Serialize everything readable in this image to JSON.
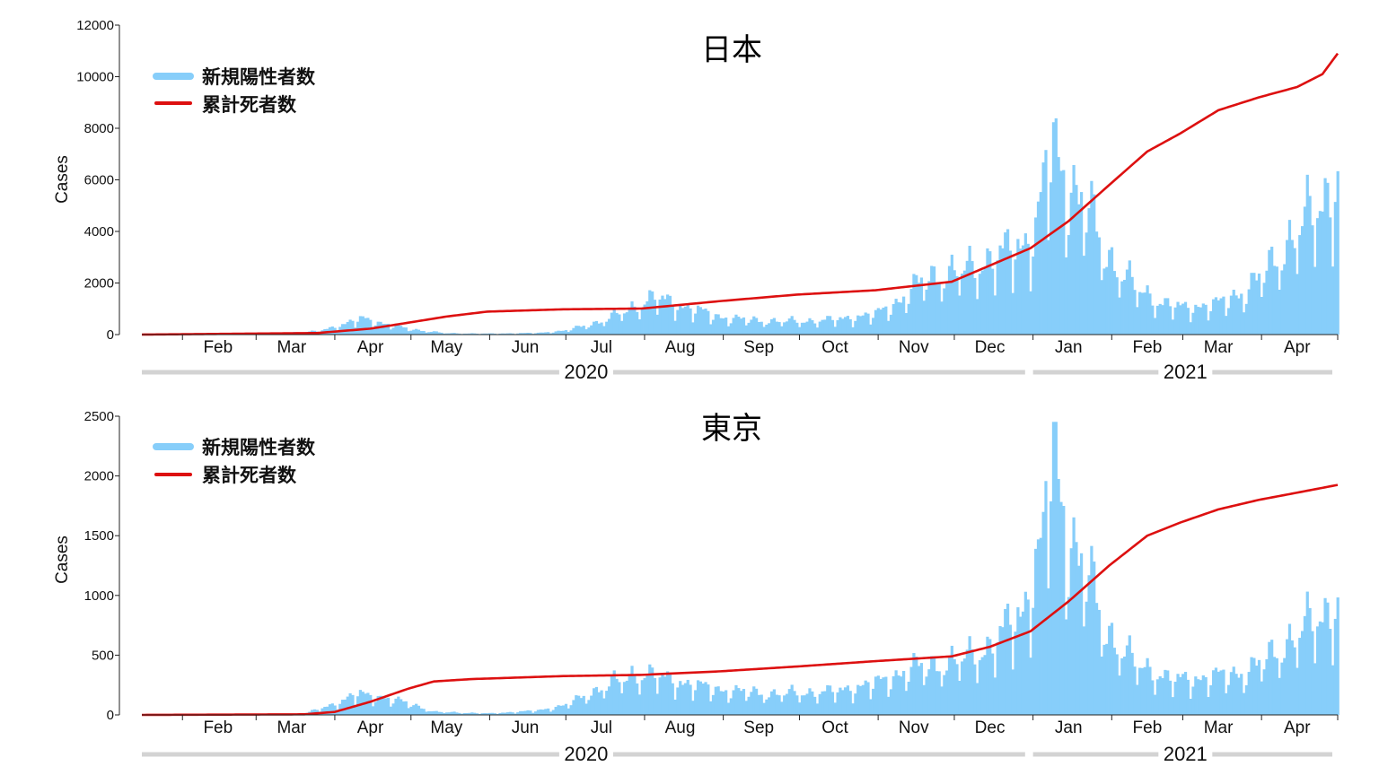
{
  "chart_data": [
    {
      "type": "bar+line",
      "title": "日本",
      "ylabel": "Cases",
      "ylim": [
        0,
        12000
      ],
      "yticks": [
        "0",
        "2000",
        "4000",
        "6000",
        "8000",
        "10000",
        "12000"
      ],
      "x_range": [
        "2020-01-16",
        "2021-05-01"
      ],
      "month_labels": [
        {
          "label": "Feb",
          "date": "2020-02-15"
        },
        {
          "label": "Mar",
          "date": "2020-03-15"
        },
        {
          "label": "Apr",
          "date": "2020-04-15"
        },
        {
          "label": "May",
          "date": "2020-05-15"
        },
        {
          "label": "Jun",
          "date": "2020-06-15"
        },
        {
          "label": "Jul",
          "date": "2020-07-15"
        },
        {
          "label": "Aug",
          "date": "2020-08-15"
        },
        {
          "label": "Sep",
          "date": "2020-09-15"
        },
        {
          "label": "Oct",
          "date": "2020-10-15"
        },
        {
          "label": "Nov",
          "date": "2020-11-15"
        },
        {
          "label": "Dec",
          "date": "2020-12-15"
        },
        {
          "label": "Jan",
          "date": "2021-01-15"
        },
        {
          "label": "Feb",
          "date": "2021-02-15"
        },
        {
          "label": "Mar",
          "date": "2021-03-15"
        },
        {
          "label": "Apr",
          "date": "2021-04-15"
        }
      ],
      "years": [
        {
          "label": "2020",
          "start": "2020-01-16",
          "end": "2020-12-31"
        },
        {
          "label": "2021",
          "start": "2021-01-01",
          "end": "2021-05-01"
        }
      ],
      "legend": [
        "新規陽性者数",
        "累計死者数"
      ],
      "series": [
        {
          "name": "新規陽性者数",
          "kind": "bar",
          "color": "#87cefa",
          "anchors": [
            [
              "2020-01-16",
              0
            ],
            [
              "2020-03-01",
              15
            ],
            [
              "2020-03-25",
              120
            ],
            [
              "2020-04-05",
              400
            ],
            [
              "2020-04-12",
              600
            ],
            [
              "2020-04-20",
              420
            ],
            [
              "2020-05-01",
              200
            ],
            [
              "2020-05-15",
              50
            ],
            [
              "2020-06-01",
              35
            ],
            [
              "2020-06-20",
              60
            ],
            [
              "2020-07-01",
              150
            ],
            [
              "2020-07-15",
              500
            ],
            [
              "2020-07-28",
              1050
            ],
            [
              "2020-08-05",
              1400
            ],
            [
              "2020-08-15",
              1100
            ],
            [
              "2020-08-31",
              650
            ],
            [
              "2020-09-15",
              520
            ],
            [
              "2020-10-01",
              500
            ],
            [
              "2020-10-15",
              560
            ],
            [
              "2020-10-31",
              760
            ],
            [
              "2020-11-10",
              1300
            ],
            [
              "2020-11-20",
              2150
            ],
            [
              "2020-12-01",
              2300
            ],
            [
              "2020-12-15",
              2800
            ],
            [
              "2020-12-28",
              3400
            ],
            [
              "2021-01-02",
              3900
            ],
            [
              "2021-01-08",
              7100
            ],
            [
              "2021-01-14",
              5800
            ],
            [
              "2021-01-22",
              4800
            ],
            [
              "2021-01-30",
              3000
            ],
            [
              "2021-02-10",
              1800
            ],
            [
              "2021-02-20",
              1200
            ],
            [
              "2021-03-01",
              1000
            ],
            [
              "2021-03-15",
              1150
            ],
            [
              "2021-03-25",
              1600
            ],
            [
              "2021-04-05",
              2600
            ],
            [
              "2021-04-15",
              3900
            ],
            [
              "2021-04-25",
              5000
            ],
            [
              "2021-05-01",
              5800
            ]
          ]
        },
        {
          "name": "累計死者数",
          "kind": "line",
          "color": "#dd1010",
          "anchors": [
            [
              "2020-01-16",
              0
            ],
            [
              "2020-03-25",
              60
            ],
            [
              "2020-04-15",
              230
            ],
            [
              "2020-04-28",
              430
            ],
            [
              "2020-05-15",
              700
            ],
            [
              "2020-05-31",
              890
            ],
            [
              "2020-06-30",
              980
            ],
            [
              "2020-07-31",
              1010
            ],
            [
              "2020-08-31",
              1300
            ],
            [
              "2020-09-30",
              1550
            ],
            [
              "2020-10-31",
              1720
            ],
            [
              "2020-11-30",
              2050
            ],
            [
              "2020-12-31",
              3350
            ],
            [
              "2021-01-15",
              4400
            ],
            [
              "2021-01-31",
              5800
            ],
            [
              "2021-02-15",
              7100
            ],
            [
              "2021-02-28",
              7800
            ],
            [
              "2021-03-15",
              8700
            ],
            [
              "2021-03-31",
              9200
            ],
            [
              "2021-04-15",
              9600
            ],
            [
              "2021-04-25",
              10100
            ],
            [
              "2021-05-01",
              10900
            ]
          ]
        }
      ]
    },
    {
      "type": "bar+line",
      "title": "東京",
      "ylabel": "Cases",
      "ylim": [
        0,
        2500
      ],
      "yticks": [
        "0",
        "500",
        "1000",
        "1500",
        "2000",
        "2500"
      ],
      "x_range": [
        "2020-01-16",
        "2021-05-01"
      ],
      "month_labels": [
        {
          "label": "Feb",
          "date": "2020-02-15"
        },
        {
          "label": "Mar",
          "date": "2020-03-15"
        },
        {
          "label": "Apr",
          "date": "2020-04-15"
        },
        {
          "label": "May",
          "date": "2020-05-15"
        },
        {
          "label": "Jun",
          "date": "2020-06-15"
        },
        {
          "label": "Jul",
          "date": "2020-07-15"
        },
        {
          "label": "Aug",
          "date": "2020-08-15"
        },
        {
          "label": "Sep",
          "date": "2020-09-15"
        },
        {
          "label": "Oct",
          "date": "2020-10-15"
        },
        {
          "label": "Nov",
          "date": "2020-11-15"
        },
        {
          "label": "Dec",
          "date": "2020-12-15"
        },
        {
          "label": "Jan",
          "date": "2021-01-15"
        },
        {
          "label": "Feb",
          "date": "2021-02-15"
        },
        {
          "label": "Mar",
          "date": "2021-03-15"
        },
        {
          "label": "Apr",
          "date": "2021-04-15"
        }
      ],
      "years": [
        {
          "label": "2020",
          "start": "2020-01-16",
          "end": "2020-12-31"
        },
        {
          "label": "2021",
          "start": "2021-01-01",
          "end": "2021-05-01"
        }
      ],
      "legend": [
        "新規陽性者数",
        "累計死者数"
      ],
      "series": [
        {
          "name": "新規陽性者数",
          "kind": "bar",
          "color": "#87cefa",
          "anchors": [
            [
              "2020-01-16",
              0
            ],
            [
              "2020-03-20",
              10
            ],
            [
              "2020-04-01",
              90
            ],
            [
              "2020-04-10",
              170
            ],
            [
              "2020-04-20",
              140
            ],
            [
              "2020-05-01",
              90
            ],
            [
              "2020-05-10",
              25
            ],
            [
              "2020-06-01",
              12
            ],
            [
              "2020-06-20",
              35
            ],
            [
              "2020-07-01",
              80
            ],
            [
              "2020-07-15",
              220
            ],
            [
              "2020-07-28",
              330
            ],
            [
              "2020-08-05",
              320
            ],
            [
              "2020-08-20",
              240
            ],
            [
              "2020-09-01",
              200
            ],
            [
              "2020-09-20",
              170
            ],
            [
              "2020-10-15",
              190
            ],
            [
              "2020-11-01",
              260
            ],
            [
              "2020-11-15",
              380
            ],
            [
              "2020-12-01",
              430
            ],
            [
              "2020-12-15",
              550
            ],
            [
              "2020-12-28",
              850
            ],
            [
              "2021-01-05",
              1400
            ],
            [
              "2021-01-08",
              2150
            ],
            [
              "2021-01-15",
              1450
            ],
            [
              "2021-01-22",
              1150
            ],
            [
              "2021-01-30",
              680
            ],
            [
              "2021-02-10",
              420
            ],
            [
              "2021-02-25",
              280
            ],
            [
              "2021-03-10",
              300
            ],
            [
              "2021-03-25",
              340
            ],
            [
              "2021-04-05",
              480
            ],
            [
              "2021-04-20",
              740
            ],
            [
              "2021-05-01",
              900
            ]
          ]
        },
        {
          "name": "累計死者数",
          "kind": "line",
          "color": "#dd1010",
          "anchors": [
            [
              "2020-01-16",
              0
            ],
            [
              "2020-03-20",
              5
            ],
            [
              "2020-04-01",
              25
            ],
            [
              "2020-04-15",
              110
            ],
            [
              "2020-04-30",
              220
            ],
            [
              "2020-05-10",
              280
            ],
            [
              "2020-05-25",
              300
            ],
            [
              "2020-06-30",
              325
            ],
            [
              "2020-07-31",
              335
            ],
            [
              "2020-08-31",
              365
            ],
            [
              "2020-09-30",
              405
            ],
            [
              "2020-10-31",
              450
            ],
            [
              "2020-11-30",
              490
            ],
            [
              "2020-12-15",
              570
            ],
            [
              "2020-12-31",
              700
            ],
            [
              "2021-01-15",
              950
            ],
            [
              "2021-01-31",
              1250
            ],
            [
              "2021-02-15",
              1500
            ],
            [
              "2021-02-28",
              1610
            ],
            [
              "2021-03-15",
              1720
            ],
            [
              "2021-03-31",
              1800
            ],
            [
              "2021-04-15",
              1860
            ],
            [
              "2021-05-01",
              1925
            ]
          ]
        }
      ]
    }
  ]
}
